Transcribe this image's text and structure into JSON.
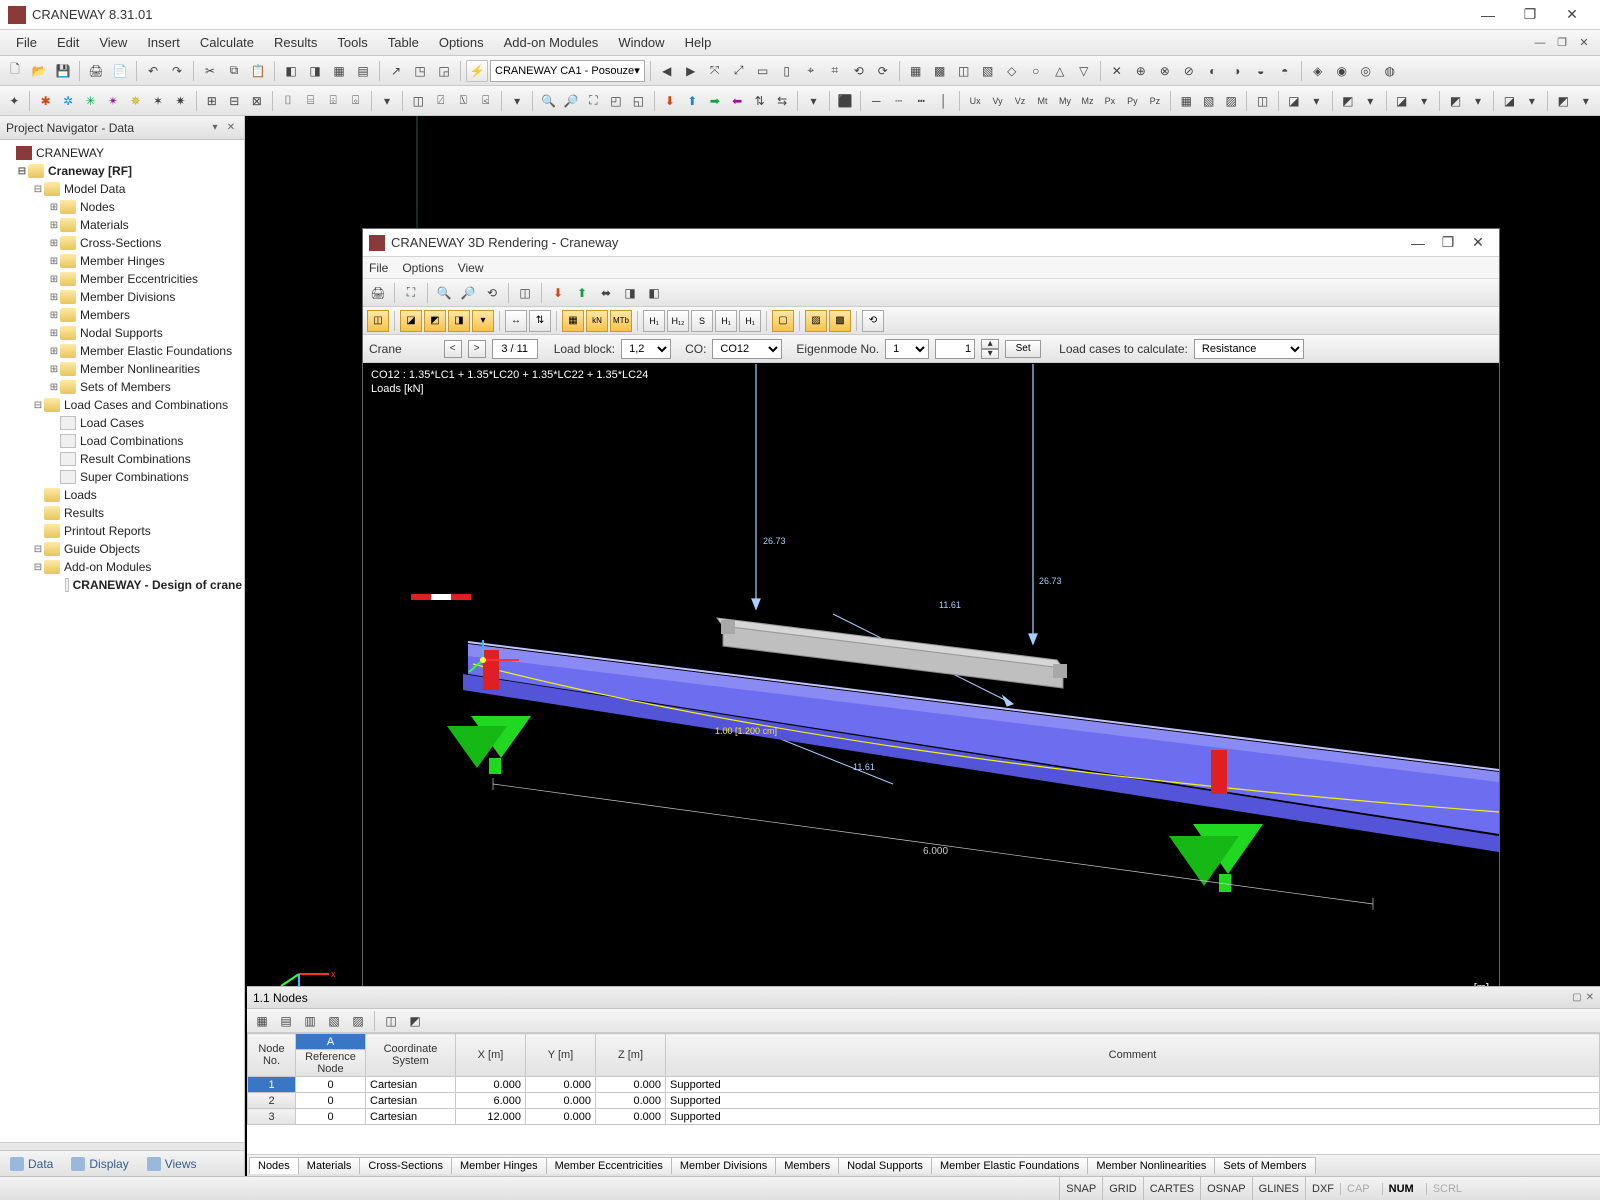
{
  "app": {
    "title": "CRANEWAY 8.31.01",
    "menus": [
      "File",
      "Edit",
      "View",
      "Insert",
      "Calculate",
      "Results",
      "Tools",
      "Table",
      "Options",
      "Add-on Modules",
      "Window",
      "Help"
    ],
    "toolbar_combo": "CRANEWAY CA1 - Posouze"
  },
  "navigator": {
    "title": "Project Navigator - Data",
    "root": "CRANEWAY",
    "project": "Craneway [RF]",
    "model_data": "Model Data",
    "model_items": [
      "Nodes",
      "Materials",
      "Cross-Sections",
      "Member Hinges",
      "Member Eccentricities",
      "Member Divisions",
      "Members",
      "Nodal Supports",
      "Member Elastic Foundations",
      "Member Nonlinearities",
      "Sets of Members"
    ],
    "load_combo": "Load Cases and Combinations",
    "load_items": [
      "Load Cases",
      "Load Combinations",
      "Result Combinations",
      "Super Combinations"
    ],
    "extra": [
      "Loads",
      "Results",
      "Printout Reports",
      "Guide Objects",
      "Add-on Modules"
    ],
    "addon_item": "CRANEWAY - Design of crane",
    "bottom_tabs": [
      "Data",
      "Display",
      "Views"
    ]
  },
  "inner": {
    "title": "CRANEWAY 3D Rendering - Craneway",
    "menus": [
      "File",
      "Options",
      "View"
    ],
    "params": {
      "crane_label": "Crane",
      "crane_value": "3 / 11",
      "loadblock_label": "Load block:",
      "loadblock_value": "1,2",
      "co_label": "CO:",
      "co_value": "CO12",
      "eigen_label": "Eigenmode No.",
      "eigen_value": "1",
      "eigen_factor": "1",
      "set_label": "Set",
      "calc_label": "Load cases to calculate:",
      "calc_value": "Resistance"
    },
    "overlay": {
      "combo_text": "CO12 : 1.35*LC1 + 1.35*LC20 + 1.35*LC22 + 1.35*LC24",
      "loads_text": "Loads [kN]",
      "units": "[m]",
      "load_val1": "26.73",
      "load_val2": "26.73",
      "diag_val": "11.61",
      "diag_val2": "11.61",
      "defl_text": "1.00 [1.200 cm]",
      "dim_text": "6.000"
    },
    "render": {
      "beam_color": "#6d6df0",
      "beam_top_color": "#8a8af5",
      "support_color": "#1fd81f",
      "post_color": "#e02020",
      "crane_color": "#bfbfbf",
      "arrow_color": "#a6d0ff",
      "defl_color": "#f5f01a",
      "bg": "#000000"
    }
  },
  "nodes_panel": {
    "title": "1.1 Nodes",
    "headers": {
      "node_no": "Node\nNo.",
      "ref_node": "Reference\nNode",
      "coord_sys": "Coordinate\nSystem",
      "x": "X [m]",
      "y": "Y [m]",
      "z": "Z [m]",
      "comment": "Comment",
      "colA": "A"
    },
    "rows": [
      {
        "no": "1",
        "ref": "0",
        "sys": "Cartesian",
        "x": "0.000",
        "y": "0.000",
        "z": "0.000",
        "comment": "Supported"
      },
      {
        "no": "2",
        "ref": "0",
        "sys": "Cartesian",
        "x": "6.000",
        "y": "0.000",
        "z": "0.000",
        "comment": "Supported"
      },
      {
        "no": "3",
        "ref": "0",
        "sys": "Cartesian",
        "x": "12.000",
        "y": "0.000",
        "z": "0.000",
        "comment": "Supported"
      }
    ],
    "tabs": [
      "Nodes",
      "Materials",
      "Cross-Sections",
      "Member Hinges",
      "Member Eccentricities",
      "Member Divisions",
      "Members",
      "Nodal Supports",
      "Member Elastic Foundations",
      "Member Nonlinearities",
      "Sets of Members"
    ]
  },
  "statusbar": {
    "items": [
      "SNAP",
      "GRID",
      "CARTES",
      "OSNAP",
      "GLINES",
      "DXF"
    ],
    "right": [
      "CAP",
      "NUM",
      "SCRL"
    ]
  }
}
